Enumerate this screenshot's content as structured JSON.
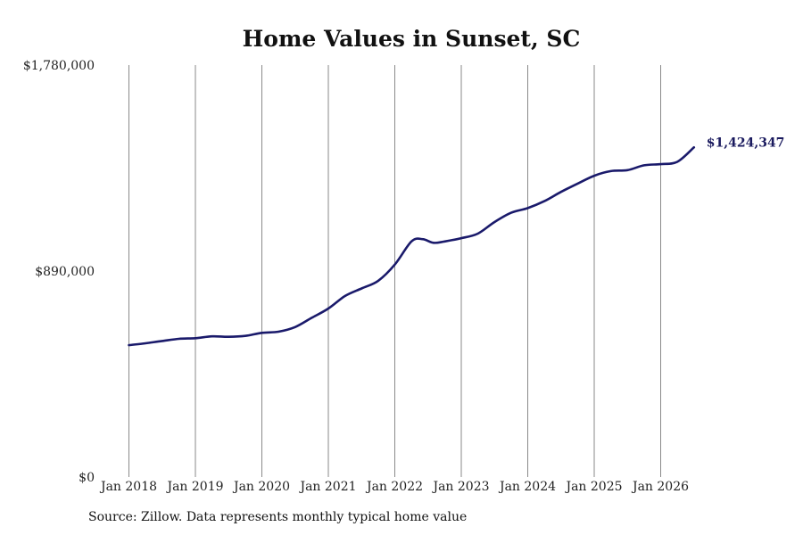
{
  "chart_data": {
    "type": "line",
    "title": "Home Values in Sunset, SC",
    "xlabel": "",
    "ylabel": "",
    "ylim": [
      0,
      1780000
    ],
    "y_ticks": [
      "$0",
      "$890,000",
      "$1,780,000"
    ],
    "x_ticks": [
      "Jan 2018",
      "Jan 2019",
      "Jan 2020",
      "Jan 2021",
      "Jan 2022",
      "Jan 2023",
      "Jan 2024",
      "Jan 2025",
      "Jan 2026"
    ],
    "grid": "vertical",
    "line_color": "#1a1a6b",
    "end_label": "$1,424,347",
    "x": [
      "2018-01",
      "2018-04",
      "2018-07",
      "2018-10",
      "2019-01",
      "2019-04",
      "2019-07",
      "2019-10",
      "2020-01",
      "2020-04",
      "2020-07",
      "2020-10",
      "2021-01",
      "2021-04",
      "2021-07",
      "2021-10",
      "2022-01",
      "2022-04",
      "2022-06",
      "2022-08",
      "2022-10",
      "2023-01",
      "2023-04",
      "2023-07",
      "2023-10",
      "2024-01",
      "2024-04",
      "2024-07",
      "2024-10",
      "2025-01",
      "2025-04",
      "2025-07",
      "2025-10",
      "2026-01",
      "2026-04",
      "2026-07"
    ],
    "values": [
      570000,
      578000,
      588000,
      597000,
      600000,
      608000,
      606000,
      610000,
      623000,
      628000,
      648000,
      688000,
      728000,
      782000,
      815000,
      848000,
      918000,
      1018000,
      1028000,
      1012000,
      1018000,
      1032000,
      1052000,
      1102000,
      1142000,
      1162000,
      1192000,
      1232000,
      1268000,
      1302000,
      1322000,
      1326000,
      1347000,
      1352000,
      1362000,
      1424347
    ]
  },
  "source": "Source: Zillow. Data represents monthly typical home value"
}
